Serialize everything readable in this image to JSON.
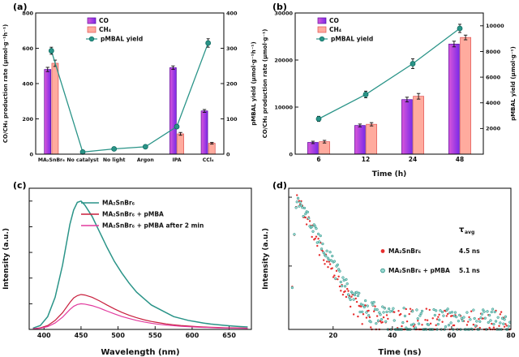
{
  "figure": {
    "panel_labels": {
      "a": "(a)",
      "b": "(b)",
      "c": "(c)",
      "d": "(d)"
    }
  },
  "colors": {
    "co_grad_start": "#d957d9",
    "co_grad_end": "#7d2ae8",
    "co_edge": "#5a0f9e",
    "ch4_fill": "#ffab9e",
    "ch4_edge": "#e05252",
    "teal": "#2a9488",
    "teal_dark": "#0e6b60",
    "crimson": "#c81e3c",
    "magenta": "#e23a9e",
    "decay_red": "#e62e2e",
    "decay_teal_fill": "#9adbd2",
    "decay_teal_edge": "#1d857a"
  },
  "chart_data": [
    {
      "id": "a",
      "type": "bar-line",
      "categories": [
        "MA₂SnBr₆",
        "No catalyst",
        "No light",
        "Argon",
        "IPA",
        "CCl₄"
      ],
      "bar_series": [
        {
          "name": "CO",
          "values": [
            480,
            0,
            0,
            0,
            490,
            245
          ],
          "errors": [
            12,
            0,
            0,
            0,
            10,
            8
          ]
        },
        {
          "name": "CH₄",
          "values": [
            515,
            0,
            0,
            0,
            115,
            62
          ],
          "errors": [
            18,
            0,
            0,
            0,
            8,
            5
          ]
        }
      ],
      "line_series": {
        "name": "pMBAL yield",
        "values": [
          293,
          6,
          15,
          21,
          78,
          315
        ],
        "errors": [
          10,
          1,
          2,
          2,
          5,
          12
        ]
      },
      "ylabel": "CO/CH₄ production rate (μmol·g⁻¹h⁻¹)",
      "y2label": "pMBAL yield (μmol·g⁻¹h⁻¹)",
      "xlabel": "",
      "ylim": [
        0,
        800
      ],
      "yticks": [
        0,
        200,
        400,
        600,
        800
      ],
      "y2lim": [
        0,
        400
      ],
      "y2ticks": [
        0,
        100,
        200,
        300,
        400
      ],
      "legend_pos": {
        "x": 108,
        "y": 22
      }
    },
    {
      "id": "b",
      "type": "bar-line",
      "categories": [
        "6",
        "12",
        "24",
        "48"
      ],
      "bar_series": [
        {
          "name": "CO",
          "values": [
            2500,
            6100,
            11600,
            23400
          ],
          "errors": [
            250,
            300,
            500,
            600
          ]
        },
        {
          "name": "CH₄",
          "values": [
            2650,
            6350,
            12300,
            24800
          ],
          "errors": [
            280,
            350,
            600,
            500
          ]
        }
      ],
      "line_series": {
        "name": "pMBAL yield",
        "values": [
          2750,
          4650,
          7050,
          9800
        ],
        "errors": [
          200,
          260,
          380,
          320
        ]
      },
      "ylabel": "CO/CH₄ production rate (μmol·g⁻¹)",
      "y2label": "pMBAL yield (μmol·g⁻¹)",
      "xlabel": "Time (h)",
      "ylim": [
        0,
        30000
      ],
      "yticks": [
        0,
        10000,
        20000,
        30000
      ],
      "y2lim": [
        0,
        11000
      ],
      "y2ticks": [
        2000,
        4000,
        6000,
        8000,
        10000
      ],
      "legend_pos": {
        "x": 72,
        "y": 22
      }
    },
    {
      "id": "c",
      "type": "spectra",
      "xlabel": "Wavelength (nm)",
      "ylabel": "Intensity (a.u.)",
      "xlim": [
        380,
        680
      ],
      "xticks": [
        400,
        450,
        500,
        550,
        600,
        650
      ],
      "ylim": [
        0,
        1.1
      ],
      "x": [
        385,
        395,
        405,
        415,
        425,
        435,
        440,
        445,
        450,
        455,
        465,
        475,
        485,
        495,
        505,
        515,
        525,
        535,
        545,
        555,
        565,
        575,
        585,
        595,
        605,
        615,
        625,
        635,
        645,
        655,
        665,
        675
      ],
      "series": [
        {
          "name": "MA₂SnBr₆",
          "color_key": "teal",
          "values": [
            0.01,
            0.03,
            0.1,
            0.25,
            0.5,
            0.82,
            0.93,
            0.99,
            1.0,
            0.97,
            0.88,
            0.76,
            0.64,
            0.53,
            0.44,
            0.36,
            0.29,
            0.24,
            0.19,
            0.16,
            0.13,
            0.1,
            0.085,
            0.07,
            0.06,
            0.05,
            0.042,
            0.036,
            0.031,
            0.026,
            0.022,
            0.019
          ]
        },
        {
          "name": "MA₂SnBr₆ + pMBA",
          "color_key": "crimson",
          "values": [
            0.005,
            0.012,
            0.03,
            0.07,
            0.13,
            0.21,
            0.245,
            0.263,
            0.272,
            0.268,
            0.25,
            0.222,
            0.19,
            0.16,
            0.133,
            0.11,
            0.091,
            0.075,
            0.062,
            0.052,
            0.043,
            0.036,
            0.03,
            0.026,
            0.022,
            0.019,
            0.017,
            0.015,
            0.013,
            0.012,
            0.011,
            0.01
          ]
        },
        {
          "name": "MA₂SnBr₆ + pMBA after 2 min",
          "color_key": "magenta",
          "values": [
            0.004,
            0.009,
            0.022,
            0.05,
            0.095,
            0.155,
            0.18,
            0.194,
            0.2,
            0.197,
            0.185,
            0.166,
            0.143,
            0.121,
            0.101,
            0.085,
            0.07,
            0.058,
            0.048,
            0.04,
            0.034,
            0.029,
            0.024,
            0.021,
            0.018,
            0.016,
            0.014,
            0.012,
            0.011,
            0.01,
            0.009,
            0.008
          ]
        }
      ],
      "legend_pos": {
        "x": 100,
        "y": 30
      }
    },
    {
      "id": "d",
      "type": "decay",
      "xlabel": "Time (ns)",
      "ylabel": "Intensity (a.u.)",
      "xlim": [
        5,
        80
      ],
      "xticks": [
        20,
        40,
        60,
        80
      ],
      "tau_header": "τ",
      "tau_header_sub": "avg",
      "series": [
        {
          "name": "MA₂SnBr₆",
          "tau_label": "4.5 ns",
          "tau_ns": 4.5,
          "style": "red"
        },
        {
          "name": "MA₂SnBr₆ + pMBA",
          "tau_label": "5.1 ns",
          "tau_ns": 5.1,
          "style": "teal"
        }
      ],
      "legend_pos": {
        "x": 152,
        "y": 66
      }
    }
  ]
}
